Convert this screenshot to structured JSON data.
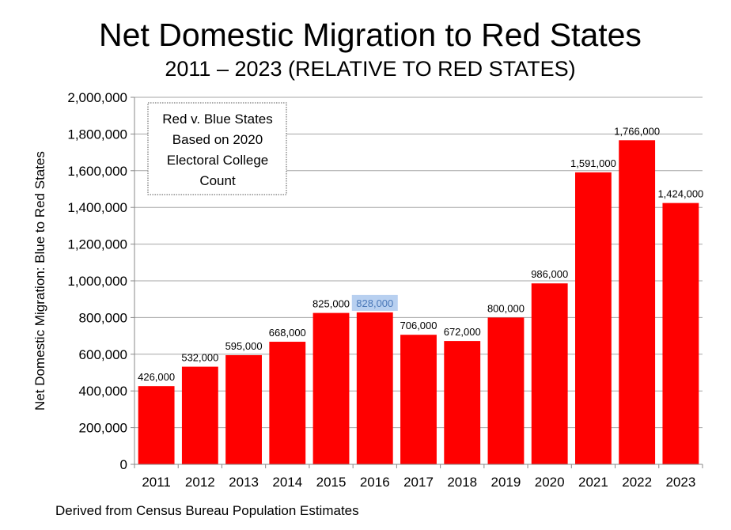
{
  "chart_data": {
    "type": "bar",
    "title": "Net Domestic Migration to Red States",
    "subtitle": "2011 – 2023 (RELATIVE TO RED STATES)",
    "xlabel": "",
    "ylabel": "Net Domestic Migration: Blue to Red States",
    "categories": [
      "2011",
      "2012",
      "2013",
      "2014",
      "2015",
      "2016",
      "2017",
      "2018",
      "2019",
      "2020",
      "2021",
      "2022",
      "2023"
    ],
    "values": [
      426000,
      532000,
      595000,
      668000,
      825000,
      828000,
      706000,
      672000,
      800000,
      986000,
      1591000,
      1766000,
      1424000
    ],
    "data_labels": [
      "426,000",
      "532,000",
      "595,000",
      "668,000",
      "825,000",
      "828,000",
      "706,000",
      "672,000",
      "800,000",
      "986,000",
      "1,591,000",
      "1,766,000",
      "1,424,000"
    ],
    "highlighted_label_index": 5,
    "ylim": [
      0,
      2000000
    ],
    "yticks": [
      0,
      200000,
      400000,
      600000,
      800000,
      1000000,
      1200000,
      1400000,
      1600000,
      1800000,
      2000000
    ],
    "ytick_labels": [
      "0",
      "200,000",
      "400,000",
      "600,000",
      "800,000",
      "1,000,000",
      "1,200,000",
      "1,400,000",
      "1,600,000",
      "1,800,000",
      "2,000,000"
    ],
    "grid": true,
    "bar_color": "#ff0000",
    "highlight_color": "#b8d0f0",
    "annotation": [
      "Red v. Blue States",
      "Based on 2020",
      "Electoral College",
      "Count"
    ],
    "source": "Derived from Census Bureau Population Estimates"
  }
}
